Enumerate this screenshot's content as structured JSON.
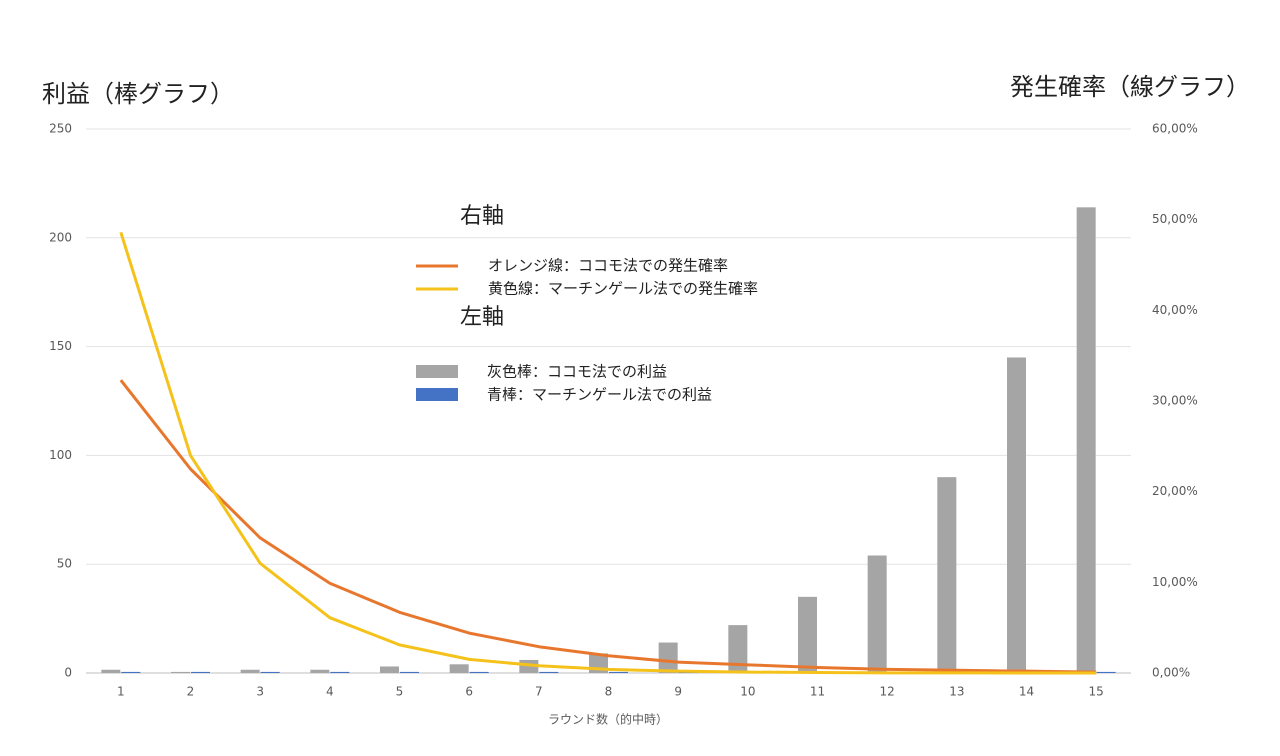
{
  "chart_data": {
    "type": "bar",
    "title": "利益（棒グラフ）",
    "y2_title": "発生確率（線グラフ）",
    "x_label": "ラウンド数（的中時）",
    "annotations": [
      "右軸",
      "左軸"
    ],
    "categories": [
      "1",
      "2",
      "3",
      "4",
      "5",
      "6",
      "7",
      "8",
      "9",
      "10",
      "11",
      "12",
      "13",
      "14",
      "15"
    ],
    "ylim": [
      0,
      250
    ],
    "yticks": [
      0,
      50,
      100,
      150,
      200,
      250
    ],
    "y2lim": [
      0,
      60
    ],
    "y2ticks": [
      {
        "value": 0,
        "label": "0,00%"
      },
      {
        "value": 10,
        "label": "10,00%"
      },
      {
        "value": 20,
        "label": "20,00%"
      },
      {
        "value": 30,
        "label": "30,00%"
      },
      {
        "value": 40,
        "label": "40,00%"
      },
      {
        "value": 50,
        "label": "50,00%"
      },
      {
        "value": 60,
        "label": "60,00%"
      }
    ],
    "grid": true,
    "series": [
      {
        "name": "オレンジ線：ココモ法での発生確率",
        "type": "line",
        "axis": "y2",
        "color": "#e8772e",
        "values": [
          32.3,
          22.5,
          14.9,
          9.9,
          6.7,
          4.4,
          2.9,
          1.9,
          1.2,
          0.9,
          0.6,
          0.4,
          0.3,
          0.2,
          0.1
        ]
      },
      {
        "name": "黄色線：マーチンゲール法での発生確率",
        "type": "line",
        "axis": "y2",
        "color": "#f5c21b",
        "values": [
          48.6,
          24.0,
          12.1,
          6.1,
          3.1,
          1.5,
          0.8,
          0.4,
          0.2,
          0.1,
          0.05,
          0.02,
          0.01,
          0.005,
          0.003
        ]
      },
      {
        "name": "灰色棒：ココモ法での利益",
        "type": "bar",
        "color": "#a5a5a5",
        "values": [
          1.5,
          0.5,
          1.5,
          1.5,
          3,
          4,
          6,
          9,
          14,
          22,
          35,
          54,
          90,
          145,
          214
        ]
      },
      {
        "name": "青棒：マーチンゲール法での利益",
        "type": "bar",
        "color": "#4472c4",
        "values": [
          0.5,
          0.5,
          0.5,
          0.5,
          0.5,
          0.5,
          0.5,
          0.5,
          0.5,
          0.5,
          0.5,
          0.5,
          0.5,
          0.5,
          0.5
        ]
      }
    ]
  }
}
